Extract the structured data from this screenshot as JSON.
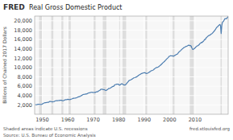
{
  "chart_data": {
    "type": "line",
    "title": "Real Gross Domestic Product",
    "ylabel": "Billions of Chained 2017 Dollars",
    "annotations": [
      "FRED",
      "Shaded areas indicate U.S. recessions",
      "Source: U.S. Bureau of Economic Analysis",
      "fred.stlouisfed.org"
    ],
    "color": "#4c7db0",
    "grid": true,
    "xlim": [
      1947,
      2023
    ],
    "ylim": [
      0,
      21000
    ],
    "xticks": [
      1950,
      1960,
      1970,
      1980,
      1990,
      2000,
      2010
    ],
    "yticks": [
      {
        "value": 2000,
        "label": "2,000"
      },
      {
        "value": 4000,
        "label": "4,000"
      },
      {
        "value": 6000,
        "label": "6,000"
      },
      {
        "value": 8000,
        "label": "8,000"
      },
      {
        "value": 10000,
        "label": "10,000"
      },
      {
        "value": 12000,
        "label": "12,000"
      },
      {
        "value": 14000,
        "label": "14,000"
      },
      {
        "value": 16000,
        "label": "16,000"
      },
      {
        "value": 18000,
        "label": "18,000"
      },
      {
        "value": 20000,
        "label": "20,000"
      }
    ],
    "recessions": [
      [
        1948.75,
        1949.92
      ],
      [
        1953.5,
        1954.33
      ],
      [
        1957.5,
        1958.25
      ],
      [
        1960.25,
        1961.17
      ],
      [
        1969.92,
        1970.92
      ],
      [
        1973.75,
        1975.17
      ],
      [
        1980.0,
        1980.5
      ],
      [
        1981.5,
        1982.92
      ],
      [
        1990.5,
        1991.17
      ],
      [
        2001.17,
        2001.92
      ],
      [
        2007.92,
        2009.5
      ],
      [
        2020.0,
        2020.5
      ]
    ],
    "x": [
      1947.25,
      1947.5,
      1947.75,
      1948.0,
      1948.25,
      1948.5,
      1948.75,
      1949.0,
      1949.25,
      1949.5,
      1949.75,
      1950.0,
      1950.25,
      1950.5,
      1950.75,
      1951.0,
      1951.25,
      1951.5,
      1951.75,
      1952.0,
      1952.25,
      1952.5,
      1952.75,
      1953.0,
      1953.25,
      1953.5,
      1953.75,
      1954.0,
      1954.25,
      1954.5,
      1954.75,
      1955.0,
      1955.25,
      1955.5,
      1955.75,
      1956.0,
      1956.25,
      1956.5,
      1956.75,
      1957.0,
      1957.25,
      1957.5,
      1957.75,
      1958.0,
      1958.25,
      1958.5,
      1958.75,
      1959.0,
      1959.25,
      1959.5,
      1959.75,
      1960.0,
      1960.25,
      1960.5,
      1960.75,
      1961.0,
      1961.25,
      1961.5,
      1961.75,
      1962.0,
      1962.25,
      1962.5,
      1962.75,
      1963.0,
      1963.25,
      1963.5,
      1963.75,
      1964.0,
      1964.25,
      1964.5,
      1964.75,
      1965.0,
      1965.25,
      1965.5,
      1965.75,
      1966.0,
      1966.25,
      1966.5,
      1966.75,
      1967.0,
      1967.25,
      1967.5,
      1967.75,
      1968.0,
      1968.25,
      1968.5,
      1968.75,
      1969.0,
      1969.25,
      1969.5,
      1969.75,
      1970.0,
      1970.25,
      1970.5,
      1970.75,
      1971.0,
      1971.25,
      1971.5,
      1971.75,
      1972.0,
      1972.25,
      1972.5,
      1972.75,
      1973.0,
      1973.25,
      1973.5,
      1973.75,
      1974.0,
      1974.25,
      1974.5,
      1974.75,
      1975.0,
      1975.25,
      1975.5,
      1975.75,
      1976.0,
      1976.25,
      1976.5,
      1976.75,
      1977.0,
      1977.25,
      1977.5,
      1977.75,
      1978.0,
      1978.25,
      1978.5,
      1978.75,
      1979.0,
      1979.25,
      1979.5,
      1979.75,
      1980.0,
      1980.25,
      1980.5,
      1980.75,
      1981.0,
      1981.25,
      1981.5,
      1981.75,
      1982.0,
      1982.25,
      1982.5,
      1982.75,
      1983.0,
      1983.25,
      1983.5,
      1983.75,
      1984.0,
      1984.25,
      1984.5,
      1984.75,
      1985.0,
      1985.25,
      1985.5,
      1985.75,
      1986.0,
      1986.25,
      1986.5,
      1986.75,
      1987.0,
      1987.25,
      1987.5,
      1987.75,
      1988.0,
      1988.25,
      1988.5,
      1988.75,
      1989.0,
      1989.25,
      1989.5,
      1989.75,
      1990.0,
      1990.25,
      1990.5,
      1990.75,
      1991.0,
      1991.25,
      1991.5,
      1991.75,
      1992.0,
      1992.25,
      1992.5,
      1992.75,
      1993.0,
      1993.25,
      1993.5,
      1993.75,
      1994.0,
      1994.25,
      1994.5,
      1994.75,
      1995.0,
      1995.25,
      1995.5,
      1995.75,
      1996.0,
      1996.25,
      1996.5,
      1996.75,
      1997.0,
      1997.25,
      1997.5,
      1997.75,
      1998.0,
      1998.25,
      1998.5,
      1998.75,
      1999.0,
      1999.25,
      1999.5,
      1999.75,
      2000.0,
      2000.25,
      2000.5,
      2000.75,
      2001.0,
      2001.25,
      2001.5,
      2001.75,
      2002.0,
      2002.25,
      2002.5,
      2002.75,
      2003.0,
      2003.25,
      2003.5,
      2003.75,
      2004.0,
      2004.25,
      2004.5,
      2004.75,
      2005.0,
      2005.25,
      2005.5,
      2005.75,
      2006.0,
      2006.25,
      2006.5,
      2006.75,
      2007.0,
      2007.25,
      2007.5,
      2007.75,
      2008.0,
      2008.25,
      2008.5,
      2008.75,
      2009.0,
      2009.25,
      2009.5,
      2009.75,
      2010.0,
      2010.25,
      2010.5,
      2010.75,
      2011.0,
      2011.25,
      2011.5,
      2011.75,
      2012.0,
      2012.25,
      2012.5,
      2012.75,
      2013.0,
      2013.25,
      2013.5,
      2013.75,
      2014.0,
      2014.25,
      2014.5,
      2014.75,
      2015.0,
      2015.25,
      2015.5,
      2015.75,
      2016.0,
      2016.25,
      2016.5,
      2016.75,
      2017.0,
      2017.25,
      2017.5,
      2017.75,
      2018.0,
      2018.25,
      2018.5,
      2018.75,
      2019.0,
      2019.25,
      2019.5,
      2019.75,
      2020.0,
      2020.25,
      2020.5,
      2020.75,
      2021.0,
      2021.25,
      2021.5,
      2021.75,
      2022.0,
      2022.25,
      2022.5,
      2022.75,
      2023.0
    ],
    "values": [
      2033.1,
      2028.5,
      2055.0,
      2086.0,
      2120.0,
      2132.0,
      2134.0,
      2105.0,
      2098.0,
      2099.0,
      2132.0,
      2178.0,
      2281.0,
      2357.0,
      2413.0,
      2478.0,
      2491.0,
      2491.0,
      2530.0,
      2545.0,
      2567.0,
      2556.0,
      2682.0,
      2735.0,
      2739.0,
      2717.0,
      2683.0,
      2662.0,
      2669.0,
      2704.0,
      2741.0,
      2831.0,
      2881.0,
      2907.0,
      2916.0,
      2903.0,
      2930.0,
      2951.0,
      2958.0,
      2990.0,
      2998.0,
      2982.0,
      2944.0,
      2881.0,
      2887.0,
      2959.0,
      3037.0,
      3099.0,
      3141.0,
      3116.0,
      3152.0,
      3194.0,
      3172.0,
      3176.0,
      3135.0,
      3161.0,
      3229.0,
      3260.0,
      3316.0,
      3375.0,
      3415.0,
      3434.0,
      3441.0,
      3474.0,
      3516.0,
      3560.0,
      3617.0,
      3681.0,
      3735.0,
      3768.0,
      3800.0,
      3883.0,
      3975.0,
      4027.0,
      4128.0,
      4215.0,
      4247.0,
      4260.0,
      4292.0,
      4318.0,
      4328.0,
      4368.0,
      4408.0,
      4510.0,
      4570.0,
      4591.0,
      4607.0,
      4676.0,
      4691.0,
      4706.0,
      4681.0,
      4643.0,
      4664.0,
      4694.0,
      4642.0,
      4744.0,
      4796.0,
      4800.0,
      4830.0,
      4956.0,
      5034.0,
      5085.0,
      5198.0,
      5329.0,
      5352.0,
      5341.0,
      5313.0,
      5249.0,
      5260.0,
      5227.0,
      5127.0,
      5080.0,
      5149.0,
      5261.0,
      5352.0,
      5494.0,
      5530.0,
      5544.0,
      5597.0,
      5703.0,
      5791.0,
      5875.0,
      5972.0,
      5963.0,
      6154.0,
      6272.0,
      6365.0,
      6394.0,
      6432.0,
      6434.0,
      6418.0,
      6395.0,
      6210.0,
      6240.0,
      6388.0,
      6483.0,
      6519.0,
      6454.0,
      6381.0,
      6266.0,
      6275.0,
      6237.0,
      6327.0,
      6500.0,
      6658.0,
      6840.0,
      7006.0,
      7170.0,
      7256.0,
      7305.0,
      7356.0,
      7453.0,
      7535.0,
      7591.0,
      7726.0,
      7793.0,
      7826.0,
      7877.0,
      7932.0,
      7979.0,
      8069.0,
      8157.0,
      8327.0,
      8381.0,
      8474.0,
      8543.0,
      8636.0,
      8706.0,
      8763.0,
      8820.0,
      8836.0,
      8893.0,
      8878.0,
      8834.0,
      8756.0,
      8707.0,
      8773.0,
      8826.0,
      8901.0,
      9009.0,
      9104.0,
      9184.0,
      9323.0,
      9333.0,
      9374.0,
      9438.0,
      9555.0,
      9680.0,
      9793.0,
      9895.0,
      9973.0,
      9993.0,
      10059.0,
      10107.0,
      10175.0,
      10313.0,
      10430.0,
      10524.0,
      10673.0,
      10802.0,
      10957.0,
      11082.0,
      11196.0,
      11319.0,
      11468.0,
      11594.0,
      11763.0,
      11891.0,
      12018.0,
      12166.0,
      12339.0,
      12432.0,
      12492.0,
      12530.0,
      12476.0,
      12490.0,
      12474.0,
      12426.0,
      12498.0,
      12586.0,
      12636.0,
      12738.0,
      12825.0,
      12845.0,
      13006.0,
      13207.0,
      13367.0,
      13457.0,
      13573.0,
      13706.0,
      13878.0,
      13975.0,
      14096.0,
      14238.0,
      14264.0,
      14395.0,
      14456.0,
      14523.0,
      14571.0,
      14645.0,
      14726.0,
      14789.0,
      14746.0,
      14668.0,
      14694.0,
      14550.0,
      14149.0,
      13893.0,
      13855.0,
      13975.0,
      14075.0,
      14189.0,
      14365.0,
      14470.0,
      14604.0,
      14628.0,
      14724.0,
      14836.0,
      15004.0,
      15176.0,
      15234.0,
      15373.0,
      15356.0,
      15489.0,
      15618.0,
      15786.0,
      16006.0,
      15973.0,
      16247.0,
      16433.0,
      16534.0,
      16676.0,
      16789.0,
      16880.0,
      16898.0,
      16994.0,
      17121.0,
      17205.0,
      17305.0,
      17464.0,
      17624.0,
      17766.0,
      17960.0,
      18138.0,
      18368.0,
      18586.0,
      18671.0,
      18836.0,
      18988.0,
      19101.0,
      19222.0,
      18952.0,
      17258.0,
      18988.0,
      19636.0,
      19806.0,
      19962.0,
      20213.0,
      20458.0,
      20440.0,
      20418.0,
      20565.0,
      20729.0,
      20894.0
    ]
  }
}
